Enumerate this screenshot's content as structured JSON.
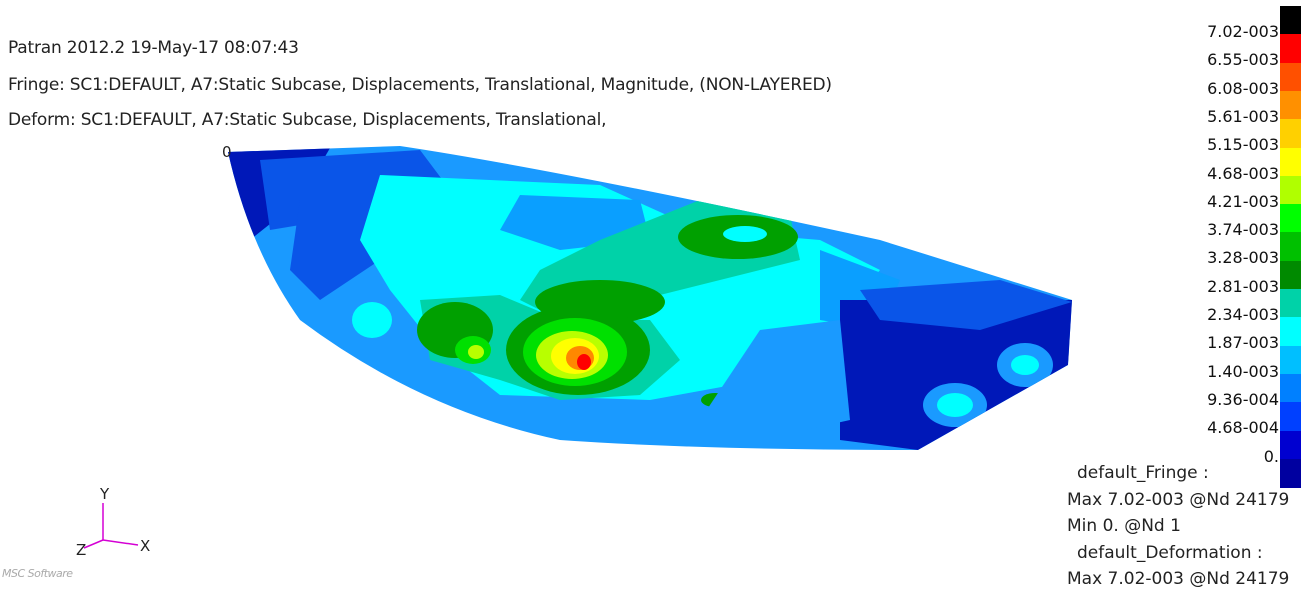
{
  "header": {
    "line1": "Patran 2012.2 19-May-17 08:07:43",
    "line2": "Fringe: SC1:DEFAULT, A7:Static Subcase, Displacements, Translational, Magnitude, (NON-LAYERED)",
    "line3": "Deform: SC1:DEFAULT, A7:Static Subcase, Displacements, Translational,"
  },
  "model": {
    "origin_marker": "0",
    "colors": {
      "dark_blue": "#0018b8",
      "mid_blue": "#0a55e8",
      "light_blue": "#1a9aff",
      "cyan": "#00ffff",
      "teal": "#00d2a8",
      "green_dark": "#00a000",
      "green": "#00e000",
      "yellow_green": "#b8ff00",
      "yellow": "#ffff00",
      "orange": "#ff8800",
      "red": "#ff0000"
    }
  },
  "legend": {
    "labels": [
      "7.02-003",
      "6.55-003",
      "6.08-003",
      "5.61-003",
      "5.15-003",
      "4.68-003",
      "4.21-003",
      "3.74-003",
      "3.28-003",
      "2.81-003",
      "2.34-003",
      "1.87-003",
      "1.40-003",
      "9.36-004",
      "4.68-004",
      "0."
    ],
    "colors": [
      "#000000",
      "#ff0000",
      "#ff5000",
      "#ff9000",
      "#ffd000",
      "#ffff00",
      "#b0ff00",
      "#00ff00",
      "#00c000",
      "#008a00",
      "#00d2a8",
      "#00ffff",
      "#00bfff",
      "#0080ff",
      "#0040ff",
      "#0000d0",
      "#0000a0"
    ]
  },
  "stats": {
    "fringe_title": "default_Fringe :",
    "fringe_max": "Max 7.02-003 @Nd 24179",
    "fringe_min": "Min  0. @Nd 1",
    "deform_title": "default_Deformation :",
    "deform_max": "Max 7.02-003 @Nd 24179"
  },
  "triad": {
    "y": "Y",
    "z": "Z",
    "x": "X",
    "color": "#d400d4"
  },
  "brand": "MSC Software"
}
